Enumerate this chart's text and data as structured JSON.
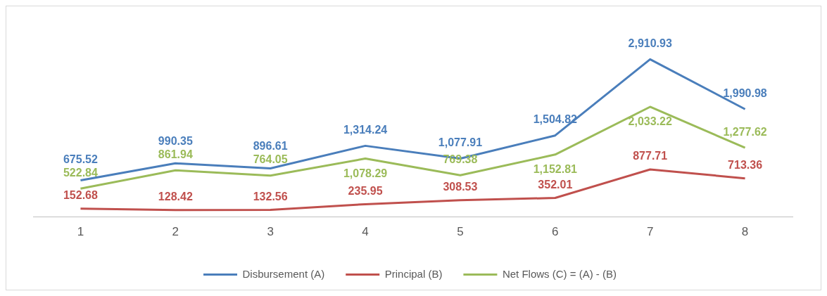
{
  "chart_data": {
    "type": "line",
    "categories": [
      "1",
      "2",
      "3",
      "4",
      "5",
      "6",
      "7",
      "8"
    ],
    "series": [
      {
        "name": "Disbursement (A)",
        "color": "#4a7ebb",
        "values": [
          675.52,
          990.35,
          896.61,
          1314.24,
          1077.91,
          1504.82,
          2910.93,
          1990.98
        ],
        "value_labels": [
          "675.52",
          "990.35",
          "896.61",
          "1,314.24",
          "1,077.91",
          "1,504.82",
          "2,910.93",
          "1,990.98"
        ]
      },
      {
        "name": "Principal (B)",
        "color": "#c0504d",
        "values": [
          152.68,
          128.42,
          132.56,
          235.95,
          308.53,
          352.01,
          877.71,
          713.36
        ],
        "value_labels": [
          "152.68",
          "128.42",
          "132.56",
          "235.95",
          "308.53",
          "352.01",
          "877.71",
          "713.36"
        ]
      },
      {
        "name": "Net Flows (C) = (A) - (B)",
        "color": "#9bbb59",
        "values": [
          522.84,
          861.94,
          764.05,
          1078.29,
          769.38,
          1152.81,
          2033.22,
          1277.62
        ],
        "value_labels": [
          "522.84",
          "861.94",
          "764.05",
          "1,078.29",
          "769.38",
          "1,152.81",
          "2,033.22",
          "1,277.62"
        ]
      }
    ],
    "legend": "bottom",
    "marker": "none",
    "line_style": "solid"
  }
}
